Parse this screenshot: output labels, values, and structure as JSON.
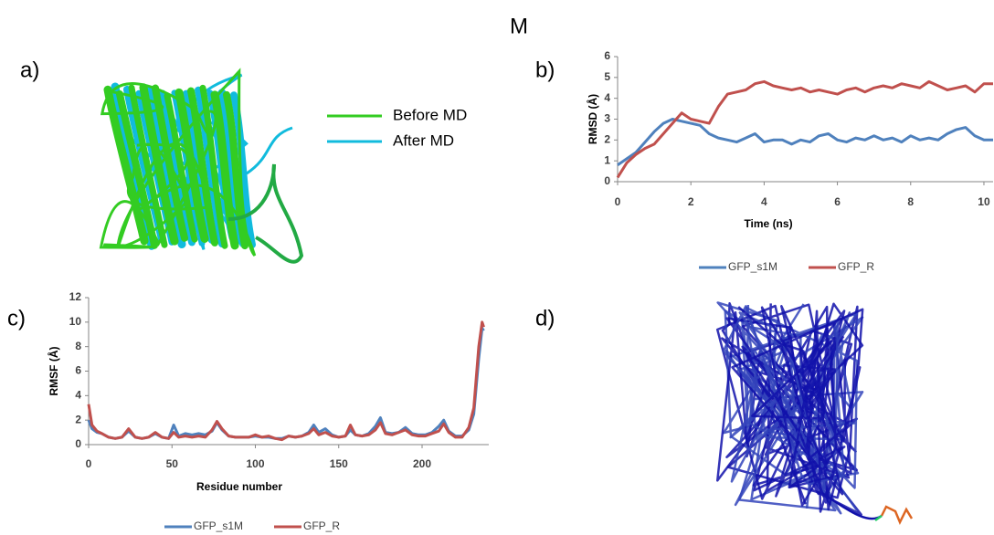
{
  "figure": {
    "top_label": "M",
    "panel_labels": [
      "a)",
      "b)",
      "c)",
      "d)"
    ],
    "structure_legend": [
      {
        "name": "Before MD",
        "color": "#33cc22"
      },
      {
        "name": "After MD",
        "color": "#11bbdd"
      }
    ]
  },
  "chart_data": [
    {
      "type": "line",
      "x_label": "Time (ns)",
      "y_label": "RMSD (Å)",
      "legend": "bottom",
      "x": [
        0,
        0.25,
        0.5,
        0.75,
        1,
        1.25,
        1.5,
        1.75,
        2,
        2.25,
        2.5,
        2.75,
        3,
        3.25,
        3.5,
        3.75,
        4,
        4.25,
        4.5,
        4.75,
        5,
        5.25,
        5.5,
        5.75,
        6,
        6.25,
        6.5,
        6.75,
        7,
        7.25,
        7.5,
        7.75,
        8,
        8.25,
        8.5,
        8.75,
        9,
        9.25,
        9.5,
        9.75,
        10,
        10.25
      ],
      "xlim": [
        0,
        10.25
      ],
      "xticks": [
        0,
        2,
        4,
        6,
        8,
        10
      ],
      "ylim": [
        0,
        6
      ],
      "yticks": [
        0,
        1,
        2,
        3,
        4,
        5,
        6
      ],
      "series": [
        {
          "name": "GFP_s1M",
          "color": "#4f81bd",
          "values": [
            0.8,
            1.1,
            1.4,
            1.9,
            2.4,
            2.8,
            3.0,
            2.9,
            2.8,
            2.7,
            2.3,
            2.1,
            2.0,
            1.9,
            2.1,
            2.3,
            1.9,
            2.0,
            2.0,
            1.8,
            2.0,
            1.9,
            2.2,
            2.3,
            2.0,
            1.9,
            2.1,
            2.0,
            2.2,
            2.0,
            2.1,
            1.9,
            2.2,
            2.0,
            2.1,
            2.0,
            2.3,
            2.5,
            2.6,
            2.2,
            2.0,
            2.0
          ]
        },
        {
          "name": "GFP_R",
          "color": "#c0504d",
          "values": [
            0.2,
            0.9,
            1.3,
            1.6,
            1.8,
            2.3,
            2.8,
            3.3,
            3.0,
            2.9,
            2.8,
            3.6,
            4.2,
            4.3,
            4.4,
            4.7,
            4.8,
            4.6,
            4.5,
            4.4,
            4.5,
            4.3,
            4.4,
            4.3,
            4.2,
            4.4,
            4.5,
            4.3,
            4.5,
            4.6,
            4.5,
            4.7,
            4.6,
            4.5,
            4.8,
            4.6,
            4.4,
            4.5,
            4.6,
            4.3,
            4.7,
            4.7
          ]
        }
      ]
    },
    {
      "type": "line",
      "x_label": "Residue number",
      "y_label": "RMSF (Å)",
      "legend": "bottom",
      "x": [
        0,
        2,
        5,
        8,
        12,
        16,
        20,
        24,
        28,
        32,
        36,
        40,
        44,
        48,
        51,
        54,
        58,
        62,
        66,
        70,
        74,
        77,
        80,
        84,
        88,
        92,
        96,
        100,
        104,
        108,
        112,
        116,
        120,
        124,
        128,
        132,
        135,
        138,
        142,
        146,
        150,
        154,
        157,
        160,
        164,
        168,
        172,
        175,
        178,
        182,
        186,
        190,
        194,
        198,
        202,
        206,
        210,
        213,
        216,
        220,
        224,
        228,
        231,
        234,
        236,
        237
      ],
      "xlim": [
        0,
        240
      ],
      "xticks": [
        0,
        50,
        100,
        150,
        200
      ],
      "ylim": [
        0,
        12
      ],
      "yticks": [
        0,
        2,
        4,
        6,
        8,
        10,
        12
      ],
      "series": [
        {
          "name": "GFP_s1M",
          "color": "#4f81bd",
          "values": [
            2.0,
            1.3,
            1.0,
            0.9,
            0.6,
            0.5,
            0.6,
            1.1,
            0.6,
            0.5,
            0.6,
            0.9,
            0.6,
            0.5,
            1.6,
            0.7,
            0.9,
            0.8,
            0.9,
            0.8,
            1.1,
            1.8,
            1.2,
            0.7,
            0.6,
            0.6,
            0.6,
            0.7,
            0.6,
            0.6,
            0.5,
            0.5,
            0.7,
            0.6,
            0.7,
            1.0,
            1.6,
            1.0,
            1.3,
            0.8,
            0.6,
            0.7,
            1.2,
            0.8,
            0.7,
            0.9,
            1.5,
            2.2,
            1.0,
            0.9,
            1.0,
            1.4,
            0.9,
            0.8,
            0.8,
            1.0,
            1.5,
            2.0,
            1.1,
            0.7,
            0.7,
            1.2,
            2.5,
            7.0,
            9.5,
            9.3
          ]
        },
        {
          "name": "GFP_R",
          "color": "#c0504d",
          "values": [
            3.3,
            1.6,
            1.1,
            0.9,
            0.6,
            0.5,
            0.6,
            1.3,
            0.6,
            0.5,
            0.6,
            1.0,
            0.6,
            0.5,
            1.0,
            0.6,
            0.7,
            0.6,
            0.7,
            0.6,
            1.2,
            1.9,
            1.3,
            0.7,
            0.6,
            0.6,
            0.6,
            0.8,
            0.6,
            0.7,
            0.5,
            0.4,
            0.7,
            0.6,
            0.7,
            0.9,
            1.3,
            0.8,
            1.0,
            0.7,
            0.6,
            0.7,
            1.6,
            0.8,
            0.7,
            0.8,
            1.2,
            1.8,
            0.9,
            0.8,
            1.0,
            1.2,
            0.8,
            0.7,
            0.7,
            0.9,
            1.1,
            1.7,
            1.0,
            0.6,
            0.6,
            1.4,
            3.0,
            8.0,
            10.0,
            9.6
          ]
        }
      ]
    }
  ]
}
